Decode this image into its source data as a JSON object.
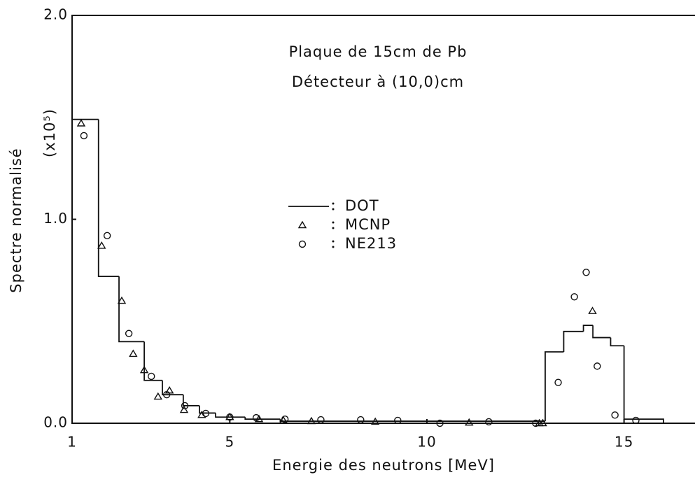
{
  "chart_data": {
    "type": "histogram",
    "title": [
      "Plaque de 15cm de Pb",
      "Détecteur à (10,0)cm"
    ],
    "x_label": "Energie des neutrons [MeV]",
    "y_label": "Spectre normalisé",
    "y_unit_note": "(x10⁵)",
    "xlim": [
      1,
      16.8
    ],
    "ylim": [
      0,
      2
    ],
    "xticks": [
      1,
      5,
      10,
      15
    ],
    "yticks": [
      {
        "value": 0,
        "label": "0.0"
      },
      {
        "value": 1,
        "label": "1.0"
      },
      {
        "value": 2,
        "label": "2.0"
      }
    ],
    "color": "#111111",
    "series": [
      {
        "name": "DOT",
        "type": "step",
        "bins": [
          1,
          1.67,
          2.19,
          2.83,
          3.29,
          3.82,
          4.23,
          4.64,
          5.39,
          6.28,
          13.0,
          13.47,
          13.97,
          14.21,
          14.66,
          15.0,
          16.0
        ],
        "values": [
          1.49,
          0.72,
          0.4,
          0.21,
          0.14,
          0.086,
          0.05,
          0.03,
          0.02,
          0.01,
          0.35,
          0.45,
          0.48,
          0.42,
          0.38,
          0.02
        ]
      },
      {
        "name": "MCNP",
        "type": "scatter",
        "marker": "triangle",
        "x": [
          1.23,
          1.75,
          2.26,
          2.55,
          2.83,
          3.18,
          3.47,
          3.84,
          4.29,
          5.0,
          5.74,
          6.36,
          7.07,
          8.69,
          11.07,
          12.85,
          12.94,
          14.2
        ],
        "values": [
          1.47,
          0.87,
          0.6,
          0.34,
          0.26,
          0.13,
          0.16,
          0.065,
          0.04,
          0.03,
          0.02,
          0.014,
          0.01,
          0.007,
          0.003,
          0,
          0,
          0.55
        ]
      },
      {
        "name": "NE213",
        "type": "scatter",
        "marker": "circle",
        "x": [
          1.3,
          1.89,
          2.44,
          3.01,
          3.4,
          3.86,
          4.39,
          5.0,
          5.67,
          6.4,
          7.31,
          8.32,
          9.26,
          10.33,
          11.57,
          12.76,
          13.33,
          13.74,
          14.04,
          14.32,
          14.77,
          15.3
        ],
        "values": [
          1.41,
          0.92,
          0.44,
          0.23,
          0.14,
          0.086,
          0.048,
          0.03,
          0.027,
          0.02,
          0.017,
          0.017,
          0.014,
          0,
          0.007,
          0,
          0.2,
          0.62,
          0.74,
          0.28,
          0.04,
          0.014
        ]
      }
    ]
  }
}
